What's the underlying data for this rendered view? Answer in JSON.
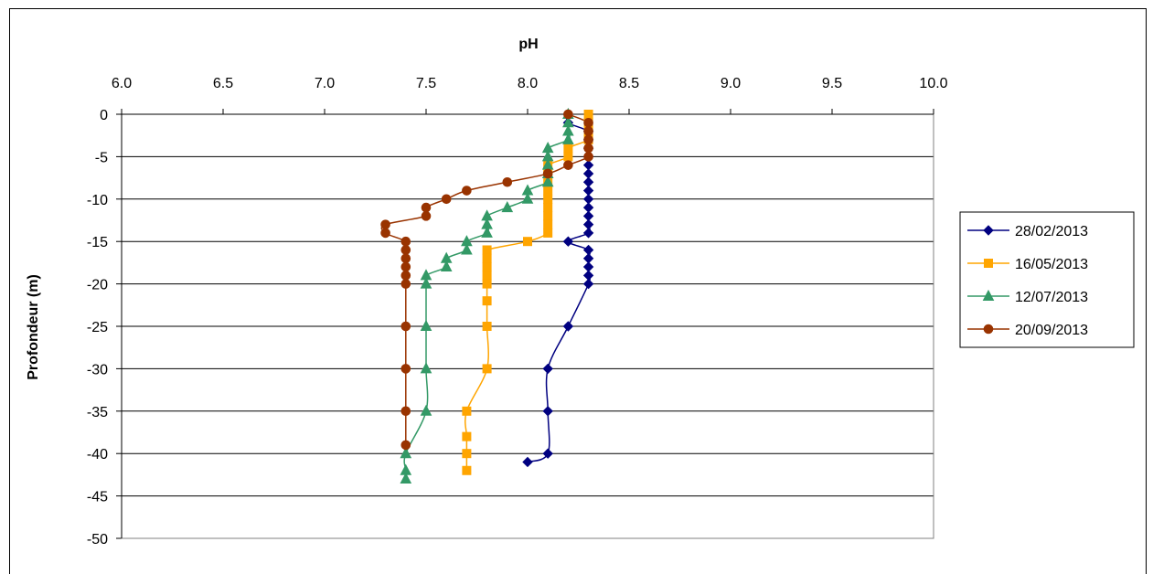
{
  "chart_data": {
    "type": "line",
    "title": "pH",
    "xlabel": "",
    "ylabel": "Profondeur (m)",
    "xlim": [
      6.0,
      10.0
    ],
    "ylim": [
      -50,
      0
    ],
    "x_ticks": [
      "6.0",
      "6.5",
      "7.0",
      "7.5",
      "8.0",
      "8.5",
      "9.0",
      "9.5",
      "10.0"
    ],
    "y_ticks": [
      "0",
      "-5",
      "-10",
      "-15",
      "-20",
      "-25",
      "-30",
      "-35",
      "-40",
      "-45",
      "-50"
    ],
    "grid": "horizontal",
    "legend_position": "right",
    "series": [
      {
        "name": "28/02/2013",
        "color": "#000080",
        "marker": "diamond",
        "points": [
          [
            8.2,
            0
          ],
          [
            8.2,
            -1
          ],
          [
            8.3,
            -2
          ],
          [
            8.3,
            -3
          ],
          [
            8.3,
            -4
          ],
          [
            8.3,
            -5
          ],
          [
            8.3,
            -6
          ],
          [
            8.3,
            -7
          ],
          [
            8.3,
            -8
          ],
          [
            8.3,
            -9
          ],
          [
            8.3,
            -10
          ],
          [
            8.3,
            -11
          ],
          [
            8.3,
            -12
          ],
          [
            8.3,
            -13
          ],
          [
            8.3,
            -14
          ],
          [
            8.2,
            -15
          ],
          [
            8.3,
            -16
          ],
          [
            8.3,
            -17
          ],
          [
            8.3,
            -18
          ],
          [
            8.3,
            -19
          ],
          [
            8.3,
            -20
          ],
          [
            8.2,
            -25
          ],
          [
            8.1,
            -30
          ],
          [
            8.1,
            -35
          ],
          [
            8.1,
            -40
          ],
          [
            8.0,
            -41
          ]
        ]
      },
      {
        "name": "16/05/2013",
        "color": "#FFA500",
        "marker": "square",
        "points": [
          [
            8.3,
            0
          ],
          [
            8.3,
            -1
          ],
          [
            8.3,
            -2
          ],
          [
            8.3,
            -3
          ],
          [
            8.2,
            -4
          ],
          [
            8.2,
            -5
          ],
          [
            8.1,
            -6
          ],
          [
            8.1,
            -7
          ],
          [
            8.1,
            -8
          ],
          [
            8.1,
            -9
          ],
          [
            8.1,
            -10
          ],
          [
            8.1,
            -11
          ],
          [
            8.1,
            -12
          ],
          [
            8.1,
            -13
          ],
          [
            8.1,
            -14
          ],
          [
            8.0,
            -15
          ],
          [
            7.8,
            -16
          ],
          [
            7.8,
            -17
          ],
          [
            7.8,
            -18
          ],
          [
            7.8,
            -19
          ],
          [
            7.8,
            -20
          ],
          [
            7.8,
            -22
          ],
          [
            7.8,
            -25
          ],
          [
            7.8,
            -30
          ],
          [
            7.7,
            -35
          ],
          [
            7.7,
            -38
          ],
          [
            7.7,
            -40
          ],
          [
            7.7,
            -42
          ]
        ]
      },
      {
        "name": "12/07/2013",
        "color": "#339966",
        "marker": "triangle",
        "points": [
          [
            8.2,
            0
          ],
          [
            8.2,
            -1
          ],
          [
            8.2,
            -2
          ],
          [
            8.2,
            -3
          ],
          [
            8.1,
            -4
          ],
          [
            8.1,
            -5
          ],
          [
            8.1,
            -6
          ],
          [
            8.1,
            -7
          ],
          [
            8.1,
            -8
          ],
          [
            8.0,
            -9
          ],
          [
            8.0,
            -10
          ],
          [
            7.9,
            -11
          ],
          [
            7.8,
            -12
          ],
          [
            7.8,
            -13
          ],
          [
            7.8,
            -14
          ],
          [
            7.7,
            -15
          ],
          [
            7.7,
            -16
          ],
          [
            7.6,
            -17
          ],
          [
            7.6,
            -18
          ],
          [
            7.5,
            -19
          ],
          [
            7.5,
            -20
          ],
          [
            7.5,
            -25
          ],
          [
            7.5,
            -30
          ],
          [
            7.5,
            -35
          ],
          [
            7.4,
            -40
          ],
          [
            7.4,
            -42
          ],
          [
            7.4,
            -43
          ]
        ]
      },
      {
        "name": "20/09/2013",
        "color": "#993300",
        "marker": "circle",
        "points": [
          [
            8.2,
            0
          ],
          [
            8.3,
            -1
          ],
          [
            8.3,
            -2
          ],
          [
            8.3,
            -3
          ],
          [
            8.3,
            -4
          ],
          [
            8.3,
            -5
          ],
          [
            8.2,
            -6
          ],
          [
            8.1,
            -7
          ],
          [
            7.9,
            -8
          ],
          [
            7.7,
            -9
          ],
          [
            7.6,
            -10
          ],
          [
            7.5,
            -11
          ],
          [
            7.5,
            -12
          ],
          [
            7.3,
            -13
          ],
          [
            7.3,
            -14
          ],
          [
            7.4,
            -15
          ],
          [
            7.4,
            -16
          ],
          [
            7.4,
            -17
          ],
          [
            7.4,
            -18
          ],
          [
            7.4,
            -19
          ],
          [
            7.4,
            -20
          ],
          [
            7.4,
            -25
          ],
          [
            7.4,
            -30
          ],
          [
            7.4,
            -35
          ],
          [
            7.4,
            -39
          ]
        ]
      }
    ]
  }
}
